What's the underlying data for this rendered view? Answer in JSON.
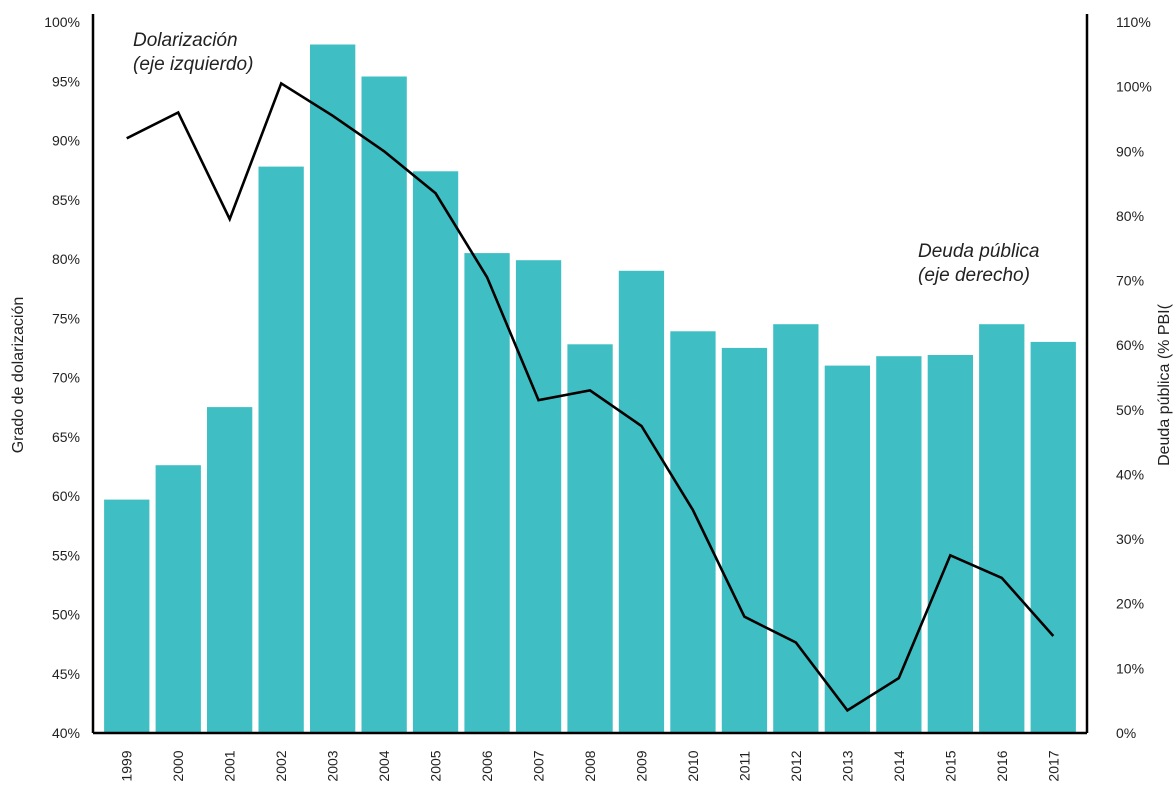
{
  "chart_data": {
    "type": "bar",
    "categories": [
      "1999",
      "2000",
      "2001",
      "2002",
      "2003",
      "2004",
      "2005",
      "2006",
      "2007",
      "2008",
      "2009",
      "2010",
      "2011",
      "2012",
      "2013",
      "2014",
      "2015",
      "2016",
      "2017"
    ],
    "series": [
      {
        "type": "bar",
        "axis": "left",
        "color": "#3fbfc3",
        "values": [
          59.7,
          62.6,
          67.5,
          87.8,
          98.1,
          95.4,
          87.4,
          80.5,
          79.9,
          72.8,
          79.0,
          73.9,
          72.5,
          74.5,
          71.0,
          71.8,
          71.9,
          74.5,
          73.0
        ]
      },
      {
        "type": "line",
        "axis": "right",
        "color": "#000000",
        "values": [
          92,
          96,
          79.5,
          100.5,
          95.5,
          90,
          83.5,
          70.5,
          51.5,
          53,
          47.5,
          34.5,
          18,
          14,
          3.5,
          8.5,
          27.5,
          24,
          15
        ]
      }
    ],
    "ylabel": "Grado de dolarización",
    "ylabel_right": "Deuda pública (% PBI(",
    "ylim": [
      40,
      100
    ],
    "ylim_right": [
      0,
      110
    ],
    "yticks": [
      "40%",
      "45%",
      "50%",
      "55%",
      "60%",
      "65%",
      "70%",
      "75%",
      "80%",
      "85%",
      "90%",
      "95%",
      "100%"
    ],
    "yticks_right": [
      "0%",
      "10%",
      "20%",
      "30%",
      "40%",
      "50%",
      "60%",
      "70%",
      "80%",
      "90%",
      "100%",
      "110%"
    ],
    "annotations": [
      {
        "lines": [
          "Dolarización",
          "(eje izquierdo)"
        ]
      },
      {
        "lines": [
          "Deuda pública",
          "(eje derecho)"
        ]
      }
    ],
    "grid": false,
    "legend": "none"
  }
}
